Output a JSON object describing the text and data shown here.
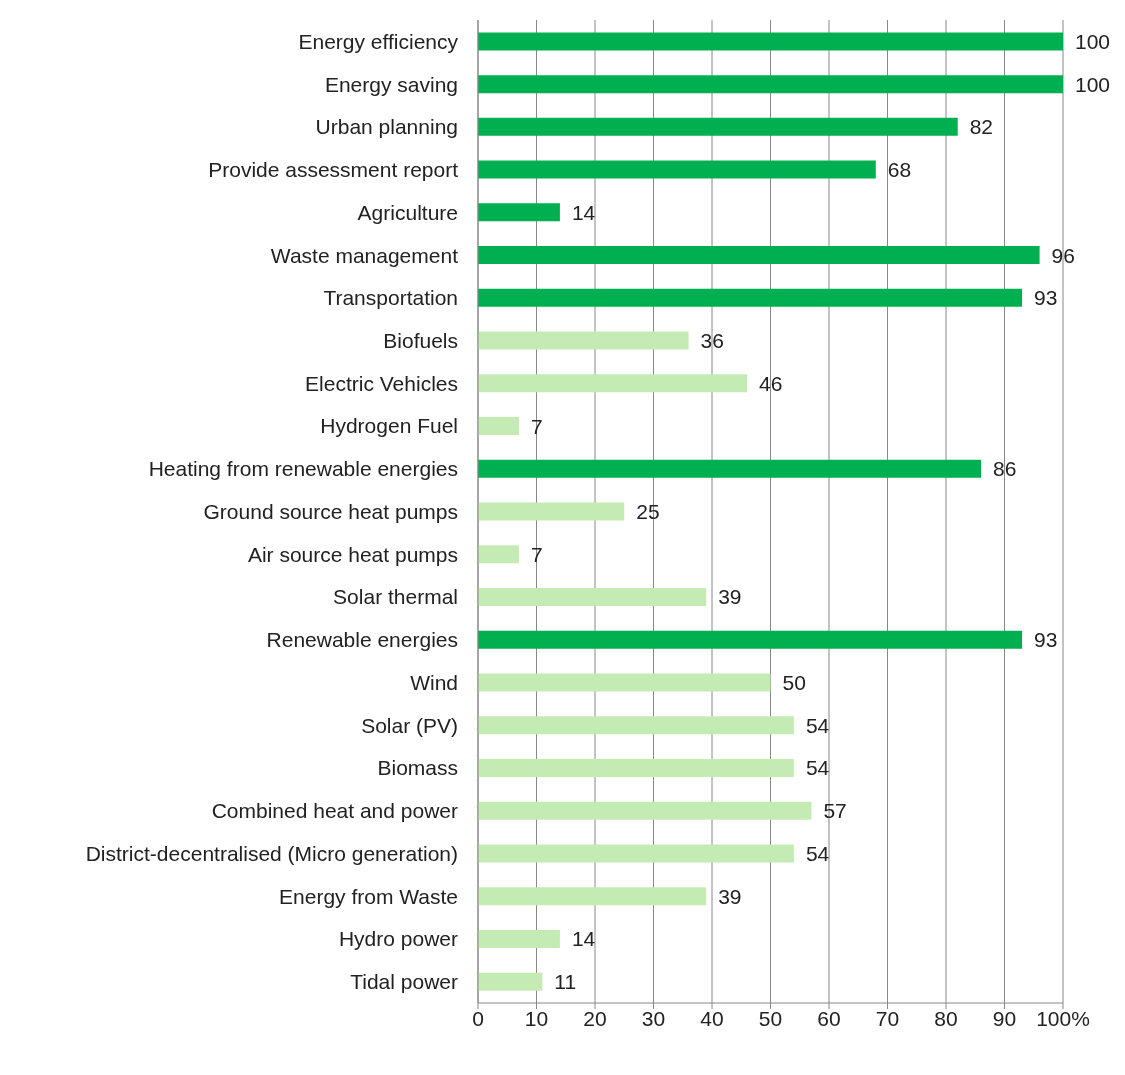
{
  "chart_data": {
    "type": "bar",
    "orientation": "horizontal",
    "categories": [
      "Energy efficiency",
      "Energy saving",
      "Urban planning",
      "Provide assessment report",
      "Agriculture",
      "Waste management",
      "Transportation",
      "Biofuels",
      "Electric Vehicles",
      "Hydrogen Fuel",
      "Heating from renewable energies",
      "Ground source heat pumps",
      "Air source heat pumps",
      "Solar thermal",
      "Renewable energies",
      "Wind",
      "Solar (PV)",
      "Biomass",
      "Combined heat and power",
      "District-decentralised (Micro generation)",
      "Energy from Waste",
      "Hydro power",
      "Tidal power"
    ],
    "values": [
      100,
      100,
      82,
      68,
      14,
      96,
      93,
      36,
      46,
      7,
      86,
      25,
      7,
      39,
      93,
      50,
      54,
      54,
      57,
      54,
      39,
      14,
      11
    ],
    "colors": [
      "#00b050",
      "#00b050",
      "#00b050",
      "#00b050",
      "#00b050",
      "#00b050",
      "#00b050",
      "#c4ebb4",
      "#c4ebb4",
      "#c4ebb4",
      "#00b050",
      "#c4ebb4",
      "#c4ebb4",
      "#c4ebb4",
      "#00b050",
      "#c4ebb4",
      "#c4ebb4",
      "#c4ebb4",
      "#c4ebb4",
      "#c4ebb4",
      "#c4ebb4",
      "#c4ebb4",
      "#c4ebb4"
    ],
    "xlim": [
      0,
      100
    ],
    "xticks": [
      0,
      10,
      20,
      30,
      40,
      50,
      60,
      70,
      80,
      90,
      {
        "value": 100,
        "label": "100%"
      }
    ],
    "grid": "x",
    "data_labels": true
  }
}
